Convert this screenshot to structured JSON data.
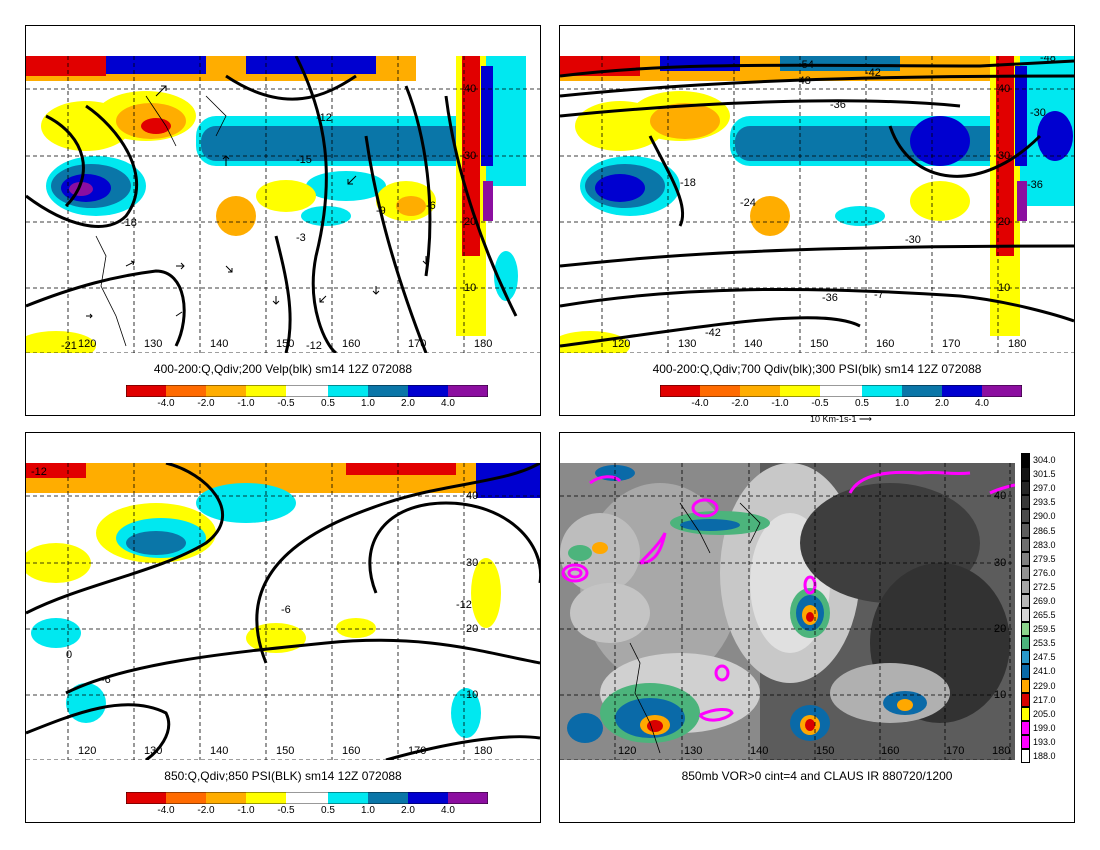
{
  "panels": [
    {
      "caption": "400-200:Q,Qdiv;200 Velp(blk) sm14 12Z 072088",
      "lon_labels": [
        "120",
        "130",
        "140",
        "150",
        "160",
        "170",
        "180"
      ],
      "lat_labels": [
        "40",
        "30",
        "20",
        "10"
      ],
      "contour_labels": [
        "-12",
        "-15",
        "-18",
        "-9",
        "-6",
        "-21",
        "-12",
        "-3"
      ],
      "colorbar_ticks": [
        "-4.0",
        "-2.0",
        "-1.0",
        "-0.5",
        "0.5",
        "1.0",
        "2.0",
        "4.0"
      ]
    },
    {
      "caption": "400-200:Q,Qdiv;700 Qdiv(blk);300 PSI(blk) sm14 12Z 072088",
      "lon_labels": [
        "120",
        "130",
        "140",
        "150",
        "160",
        "170",
        "180"
      ],
      "lat_labels": [
        "40",
        "30",
        "20",
        "10"
      ],
      "contour_labels": [
        "-54",
        "-48",
        "-42",
        "-36",
        "-18",
        "-24",
        "-30",
        "-36",
        "-42",
        "-48",
        "-30",
        "-36",
        "-7"
      ],
      "colorbar_ticks": [
        "-4.0",
        "-2.0",
        "-1.0",
        "-0.5",
        "0.5",
        "1.0",
        "2.0",
        "4.0"
      ],
      "ref_vector": "10 Km-1s-1"
    },
    {
      "caption": "850:Q,Qdiv;850 PSI(BLK) sm14 12Z 072088",
      "lon_labels": [
        "120",
        "130",
        "140",
        "150",
        "160",
        "170",
        "180"
      ],
      "lat_labels": [
        "40",
        "30",
        "20",
        "10"
      ],
      "contour_labels": [
        "-12",
        "-6",
        "-12",
        "0",
        "-6"
      ],
      "colorbar_ticks": [
        "-4.0",
        "-2.0",
        "-1.0",
        "-0.5",
        "0.5",
        "1.0",
        "2.0",
        "4.0"
      ]
    },
    {
      "caption": "850mb VOR>0 cint=4 and CLAUS IR 880720/1200",
      "lon_labels": [
        "120",
        "130",
        "140",
        "150",
        "160",
        "170",
        "180"
      ],
      "lat_labels": [
        "40",
        "30",
        "20",
        "10"
      ],
      "ir_colorbar": [
        "304.0",
        "301.5",
        "297.0",
        "293.5",
        "290.0",
        "286.5",
        "283.0",
        "279.5",
        "276.0",
        "272.5",
        "269.0",
        "265.5",
        "259.5",
        "253.5",
        "247.5",
        "241.0",
        "229.0",
        "217.0",
        "205.0",
        "199.0",
        "193.0",
        "188.0"
      ]
    }
  ],
  "colors": {
    "qdiv_scale": [
      "#e10000",
      "#ff6a00",
      "#ffad00",
      "#ffff00",
      "#ffffff",
      "#00e8f0",
      "#0a76a8",
      "#0000d0",
      "#8c0ea0"
    ],
    "ir_scale": [
      "#000000",
      "#141414",
      "#262626",
      "#383838",
      "#4a4a4a",
      "#5c5c5c",
      "#6e6e6e",
      "#808080",
      "#929292",
      "#a4a4a4",
      "#b6b6b6",
      "#d6d6d6",
      "#8cd48c",
      "#4cb47c",
      "#2a98c8",
      "#0a6aa8",
      "#ffa800",
      "#d80000",
      "#ffff00",
      "#ff00ff",
      "#ff00ff",
      "#ffffff"
    ]
  }
}
